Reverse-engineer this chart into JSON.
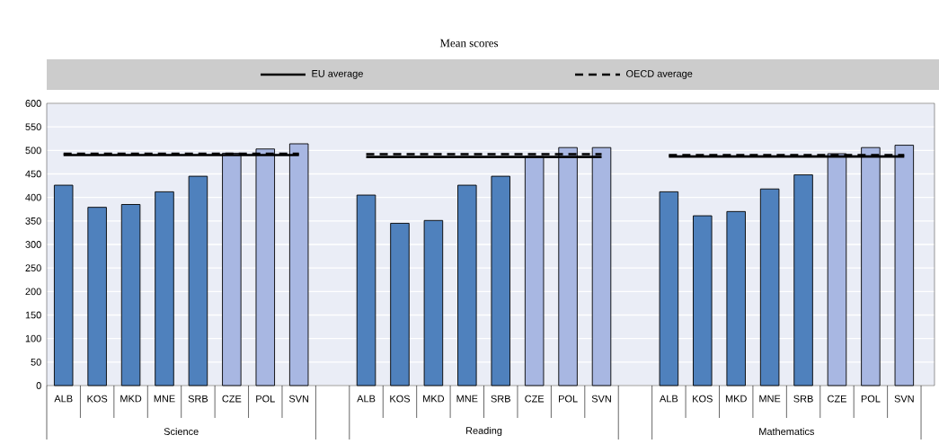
{
  "chart_data": {
    "type": "bar",
    "title": "Mean scores",
    "categories": [
      "ALB",
      "KOS",
      "MKD",
      "MNE",
      "SRB",
      "CZE",
      "POL",
      "SVN",
      null,
      "ALB",
      "KOS",
      "MKD",
      "MNE",
      "SRB",
      "CZE",
      "POL",
      "SVN",
      null,
      "ALB",
      "KOS",
      "MKD",
      "MNE",
      "SRB",
      "CZE",
      "POL",
      "SVN"
    ],
    "series": [
      {
        "values": [
          426,
          379,
          385,
          412,
          445,
          494,
          503,
          514,
          null,
          405,
          345,
          351,
          426,
          445,
          487,
          506,
          506,
          null,
          412,
          361,
          370,
          418,
          448,
          493,
          506,
          511
        ],
        "colors": [
          "#4f81bd",
          "#4f81bd",
          "#4f81bd",
          "#4f81bd",
          "#4f81bd",
          "#a8b7e2",
          "#a8b7e2",
          "#a8b7e2",
          null,
          "#4f81bd",
          "#4f81bd",
          "#4f81bd",
          "#4f81bd",
          "#4f81bd",
          "#a8b7e2",
          "#a8b7e2",
          "#a8b7e2",
          null,
          "#4f81bd",
          "#4f81bd",
          "#4f81bd",
          "#4f81bd",
          "#4f81bd",
          "#a8b7e2",
          "#a8b7e2",
          "#a8b7e2"
        ]
      },
      {
        "type": "line",
        "name": "EU average",
        "color": "#000000",
        "line_style": "solid",
        "values": [
          490,
          490,
          490,
          490,
          490,
          490,
          490,
          490,
          null,
          486,
          486,
          486,
          486,
          486,
          486,
          486,
          486,
          null,
          487,
          487,
          487,
          487,
          487,
          487,
          487,
          487
        ]
      },
      {
        "type": "line",
        "name": "OECD average",
        "color": "#000000",
        "line_style": "dashed",
        "values": [
          493,
          493,
          493,
          493,
          493,
          493,
          493,
          493,
          null,
          492,
          492,
          492,
          492,
          492,
          492,
          492,
          492,
          null,
          490,
          490,
          490,
          490,
          490,
          490,
          490,
          490
        ]
      }
    ],
    "annotations": [
      "Science",
      "Reading",
      "Mathematics"
    ],
    "ylim": [
      0,
      600
    ],
    "yticks": [
      0,
      50,
      100,
      150,
      200,
      250,
      300,
      350,
      400,
      450,
      500,
      550,
      600
    ],
    "grid": "y",
    "legend": "top"
  }
}
